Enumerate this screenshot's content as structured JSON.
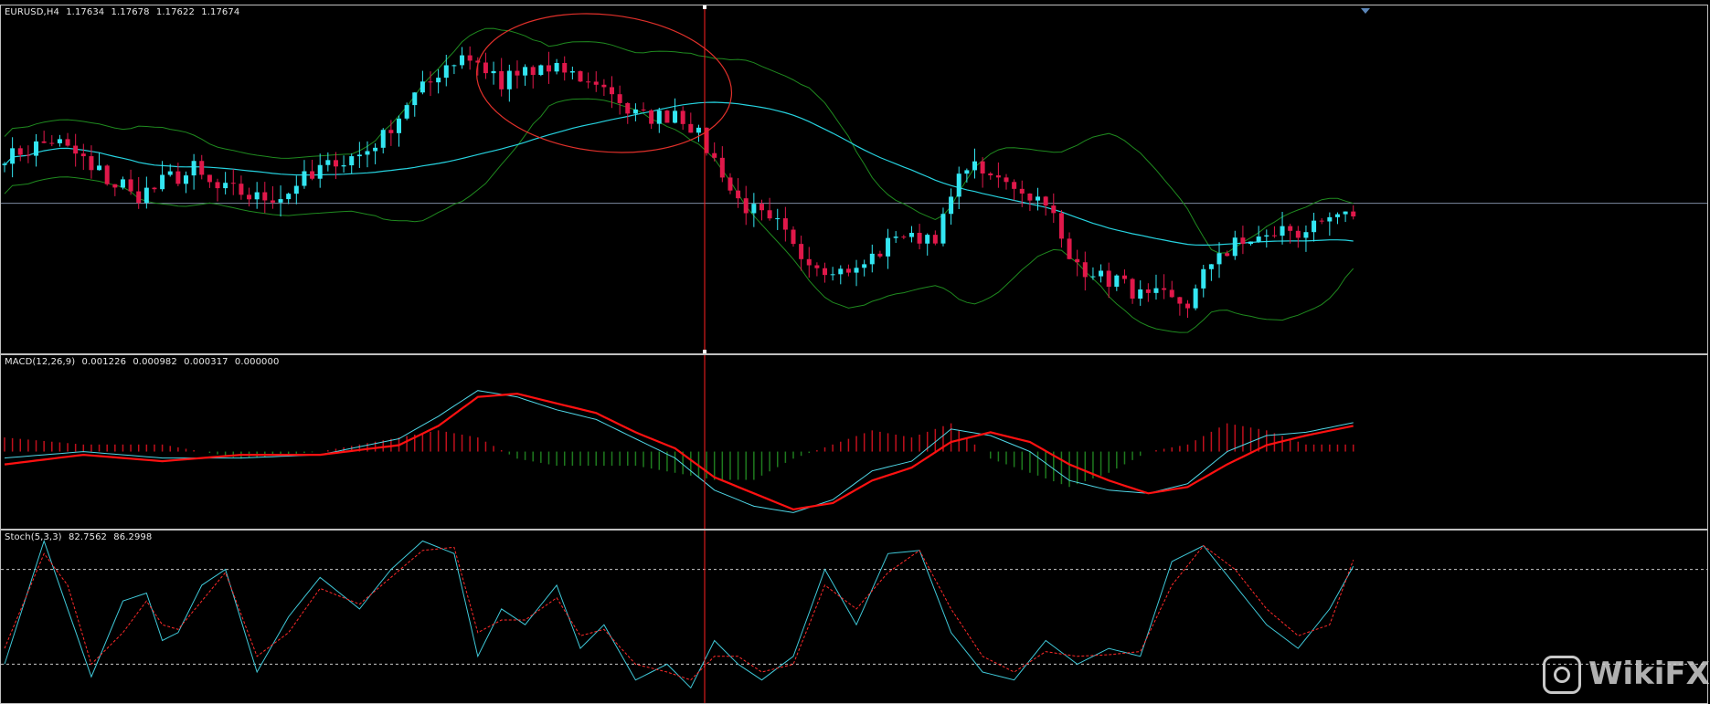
{
  "price_pane": {
    "symbol": "EURUSD,H4",
    "ohlc": [
      "1.17634",
      "1.17678",
      "1.17622",
      "1.17674"
    ]
  },
  "macd_pane": {
    "title": "MACD(12,26,9)",
    "values": [
      "0.001226",
      "0.000982",
      "0.000317",
      "0.000000"
    ]
  },
  "stoch_pane": {
    "title": "Stoch(5,3,3)",
    "values": [
      "82.7562",
      "86.2998"
    ]
  },
  "watermark": {
    "text": "WikiFX",
    "icon": "wikifx-logo-icon"
  },
  "colors": {
    "bull_candle": "#33e6f2",
    "bear_candle": "#e0184a",
    "bollinger": "#1f8a1f",
    "moving_average": "#26d3e0",
    "macd_line": "#4fd6e6",
    "macd_signal": "#ff1111",
    "histogram_positive": "#c0101c",
    "histogram_negative": "#1e7a1e",
    "crosshair": "#ff1f1f",
    "highlight_ellipse": "#e0302a",
    "stoch_main": "#3fc9d9",
    "stoch_signal": "#ff2a2a",
    "level_lines": "#c8c8c8"
  },
  "chart_data": [
    {
      "type": "candlestick",
      "name": "EURUSD,H4",
      "overlays": [
        "Bollinger bands",
        "moving average",
        "horizontal price line"
      ],
      "price_anchors": [
        {
          "candle": 0,
          "mid": 1.1744
        },
        {
          "candle": 6,
          "mid": 1.1752
        },
        {
          "candle": 10,
          "mid": 1.1742
        },
        {
          "candle": 17,
          "mid": 1.1728
        },
        {
          "candle": 24,
          "mid": 1.174
        },
        {
          "candle": 28,
          "mid": 1.173
        },
        {
          "candle": 34,
          "mid": 1.1726
        },
        {
          "candle": 41,
          "mid": 1.174
        },
        {
          "candle": 46,
          "mid": 1.1748
        },
        {
          "candle": 52,
          "mid": 1.177
        },
        {
          "candle": 58,
          "mid": 1.1789
        },
        {
          "candle": 63,
          "mid": 1.1776
        },
        {
          "candle": 70,
          "mid": 1.1782
        },
        {
          "candle": 75,
          "mid": 1.1775
        },
        {
          "candle": 80,
          "mid": 1.1762
        },
        {
          "candle": 85,
          "mid": 1.1763
        },
        {
          "candle": 89,
          "mid": 1.1748
        },
        {
          "candle": 93,
          "mid": 1.1725
        },
        {
          "candle": 98,
          "mid": 1.1715
        },
        {
          "candle": 103,
          "mid": 1.1698
        },
        {
          "candle": 108,
          "mid": 1.1696
        },
        {
          "candle": 113,
          "mid": 1.1712
        },
        {
          "candle": 118,
          "mid": 1.1712
        },
        {
          "candle": 122,
          "mid": 1.1741
        },
        {
          "candle": 126,
          "mid": 1.1734
        },
        {
          "candle": 132,
          "mid": 1.1726
        },
        {
          "candle": 135,
          "mid": 1.17
        },
        {
          "candle": 140,
          "mid": 1.1694
        },
        {
          "candle": 145,
          "mid": 1.1685
        },
        {
          "candle": 150,
          "mid": 1.1684
        },
        {
          "candle": 154,
          "mid": 1.1704
        },
        {
          "candle": 160,
          "mid": 1.1711
        },
        {
          "candle": 166,
          "mid": 1.1715
        },
        {
          "candle": 171,
          "mid": 1.172
        }
      ],
      "y_range": [
        1.1662,
        1.1808
      ]
    },
    {
      "type": "line+histogram",
      "name": "MACD(12,26,9)",
      "x": [
        0,
        10,
        20,
        30,
        40,
        50,
        55,
        60,
        65,
        70,
        75,
        80,
        85,
        90,
        95,
        100,
        105,
        110,
        115,
        120,
        125,
        130,
        135,
        140,
        145,
        150,
        155,
        160,
        165,
        171
      ],
      "macd": [
        -0.0002,
        -0.0,
        -0.0002,
        -0.0002,
        -0.0001,
        0.0004,
        0.0011,
        0.0019,
        0.0017,
        0.0013,
        0.001,
        0.0004,
        -0.0002,
        -0.0012,
        -0.0017,
        -0.0019,
        -0.0015,
        -0.0006,
        -0.0003,
        0.0007,
        0.0005,
        0.0,
        -0.0009,
        -0.0012,
        -0.0013,
        -0.001,
        0.0,
        0.0005,
        0.0006,
        0.0009
      ],
      "signal": [
        -0.0004,
        -0.0001,
        -0.0003,
        -0.0001,
        -0.0001,
        0.0002,
        0.0008,
        0.0017,
        0.0018,
        0.0015,
        0.0012,
        0.0006,
        0.0001,
        -0.0008,
        -0.0013,
        -0.0018,
        -0.0016,
        -0.0009,
        -0.0005,
        0.0003,
        0.0006,
        0.0003,
        -0.0004,
        -0.0009,
        -0.0013,
        -0.0011,
        -0.0004,
        0.0002,
        0.0005,
        0.0008
      ],
      "y_range": [
        -0.0024,
        0.003
      ]
    },
    {
      "type": "line",
      "name": "Stoch(5,3,3)",
      "levels": [
        80,
        20
      ],
      "y_range": [
        0,
        100
      ],
      "x": [
        0,
        5,
        8,
        11,
        15,
        18,
        20,
        22,
        25,
        28,
        32,
        36,
        40,
        45,
        49,
        53,
        57,
        60,
        63,
        66,
        70,
        73,
        76,
        80,
        84,
        87,
        90,
        93,
        96,
        100,
        104,
        108,
        112,
        116,
        120,
        124,
        128,
        132,
        136,
        140,
        144,
        148,
        152,
        156,
        160,
        164,
        168,
        171
      ],
      "main": [
        20,
        98,
        55,
        12,
        60,
        65,
        35,
        40,
        70,
        80,
        15,
        50,
        75,
        55,
        80,
        98,
        90,
        25,
        55,
        45,
        70,
        30,
        45,
        10,
        20,
        5,
        35,
        20,
        10,
        25,
        80,
        45,
        90,
        92,
        40,
        15,
        10,
        35,
        20,
        30,
        25,
        85,
        95,
        70,
        45,
        30,
        55,
        82
      ],
      "signal": [
        30,
        90,
        70,
        20,
        40,
        60,
        45,
        42,
        60,
        78,
        25,
        40,
        68,
        58,
        75,
        92,
        94,
        40,
        48,
        48,
        62,
        38,
        42,
        20,
        15,
        10,
        25,
        25,
        15,
        20,
        70,
        55,
        78,
        92,
        55,
        25,
        15,
        28,
        25,
        26,
        28,
        70,
        95,
        80,
        55,
        38,
        45,
        86
      ]
    }
  ]
}
